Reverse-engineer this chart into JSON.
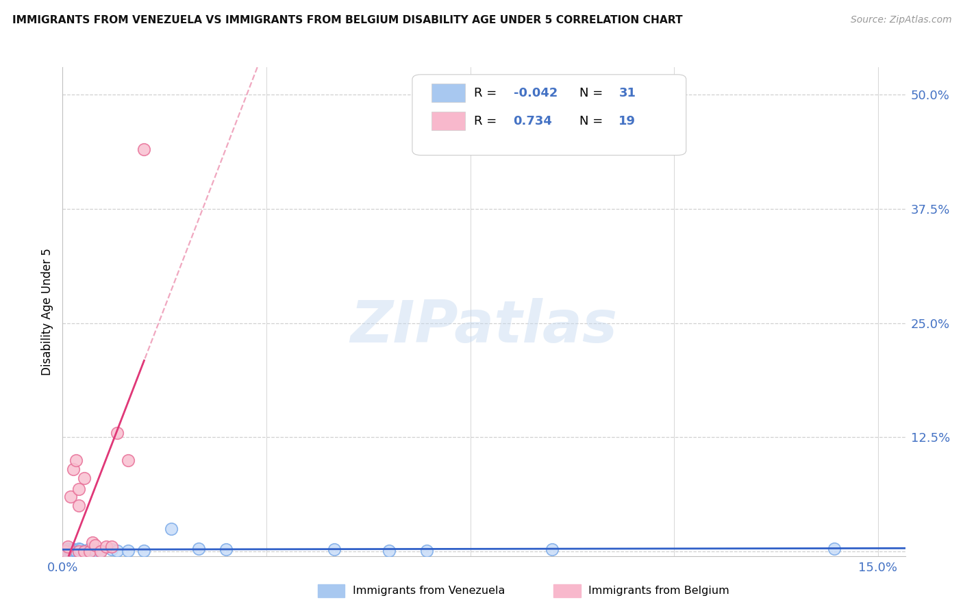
{
  "title": "IMMIGRANTS FROM VENEZUELA VS IMMIGRANTS FROM BELGIUM DISABILITY AGE UNDER 5 CORRELATION CHART",
  "source": "Source: ZipAtlas.com",
  "ylabel": "Disability Age Under 5",
  "background_color": "#ffffff",
  "grid_color": "#d0d0d0",
  "watermark_text": "ZIPatlas",
  "series1_name": "Immigrants from Venezuela",
  "series2_name": "Immigrants from Belgium",
  "series1_face_color": "#c8dcf8",
  "series1_edge_color": "#7aaae8",
  "series2_face_color": "#f8c0d0",
  "series2_edge_color": "#e87098",
  "series1_line_color": "#3060c8",
  "series2_line_color": "#e03878",
  "series2_dashed_color": "#f0a8c0",
  "legend_s1_color": "#a8c8f0",
  "legend_s2_color": "#f8b8cc",
  "stat_color": "#4472c4",
  "xlim": [
    0.0,
    0.155
  ],
  "ylim": [
    -0.005,
    0.53
  ],
  "yticks": [
    0.0,
    0.125,
    0.25,
    0.375,
    0.5
  ],
  "ytick_labels": [
    "",
    "12.5%",
    "25.0%",
    "37.5%",
    "50.0%"
  ],
  "xticks": [
    0.0,
    0.0375,
    0.075,
    0.1125,
    0.15
  ],
  "xtick_labels": [
    "0.0%",
    "",
    "",
    "",
    "15.0%"
  ],
  "series1_R": "-0.042",
  "series1_N": "31",
  "series2_R": "0.734",
  "series2_N": "19",
  "venezuela_x": [
    0.0008,
    0.0009,
    0.001,
    0.0012,
    0.0013,
    0.0015,
    0.0018,
    0.002,
    0.002,
    0.0022,
    0.0025,
    0.003,
    0.003,
    0.0032,
    0.004,
    0.005,
    0.005,
    0.006,
    0.007,
    0.009,
    0.01,
    0.012,
    0.015,
    0.02,
    0.025,
    0.03,
    0.05,
    0.06,
    0.067,
    0.09,
    0.142
  ],
  "venezuela_y": [
    0.001,
    0.003,
    0.0,
    0.002,
    0.0,
    0.001,
    0.002,
    0.002,
    0.0,
    0.001,
    0.001,
    0.003,
    0.0,
    0.002,
    0.001,
    0.002,
    0.003,
    0.001,
    0.001,
    0.002,
    0.001,
    0.001,
    0.001,
    0.025,
    0.003,
    0.002,
    0.002,
    0.001,
    0.001,
    0.002,
    0.003
  ],
  "belgium_x": [
    0.0005,
    0.001,
    0.0015,
    0.002,
    0.0025,
    0.003,
    0.003,
    0.003,
    0.004,
    0.004,
    0.005,
    0.0055,
    0.006,
    0.007,
    0.008,
    0.009,
    0.01,
    0.012,
    0.015
  ],
  "belgium_y": [
    0.0,
    0.005,
    0.06,
    0.09,
    0.1,
    0.0,
    0.05,
    0.068,
    0.0,
    0.08,
    0.0,
    0.01,
    0.007,
    0.0,
    0.005,
    0.005,
    0.13,
    0.1,
    0.44
  ]
}
